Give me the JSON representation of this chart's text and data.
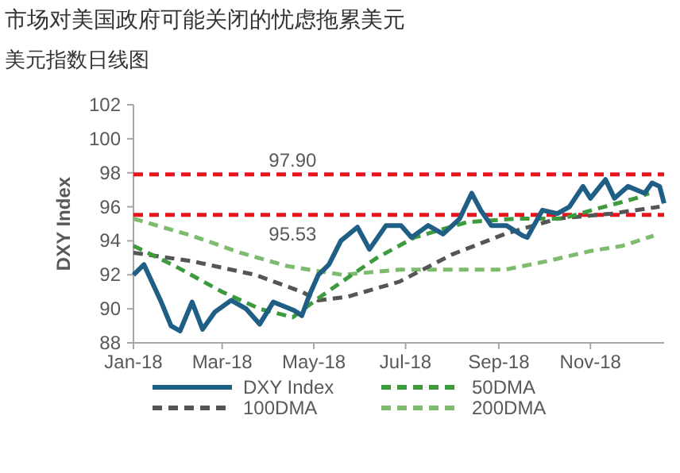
{
  "chart_data": {
    "type": "line",
    "title": "市场对美国政府可能关闭的忧虑拖累美元",
    "subtitle": "美元指数日线图",
    "ylabel": "DXY Index",
    "legend": "bottom",
    "xlim": [
      "2018-01-01",
      "2018-12-20"
    ],
    "xticks": [
      {
        "value": "2018-01-01",
        "label": "Jan-18"
      },
      {
        "value": "2018-03-01",
        "label": "Mar-18"
      },
      {
        "value": "2018-05-01",
        "label": "May-18"
      },
      {
        "value": "2018-07-01",
        "label": "Jul-18"
      },
      {
        "value": "2018-09-01",
        "label": "Sep-18"
      },
      {
        "value": "2018-11-01",
        "label": "Nov-18"
      }
    ],
    "ylim": [
      88,
      102
    ],
    "yticks": [
      88,
      90,
      92,
      94,
      96,
      98,
      100,
      102
    ],
    "series": [
      {
        "name": "DXY Index",
        "color": "#1f5f86",
        "line_style": "solid",
        "x": [
          "2018-01-01",
          "2018-01-08",
          "2018-01-19",
          "2018-01-26",
          "2018-02-01",
          "2018-02-09",
          "2018-02-16",
          "2018-02-24",
          "2018-03-07",
          "2018-03-17",
          "2018-03-26",
          "2018-04-04",
          "2018-04-18",
          "2018-04-23",
          "2018-04-28",
          "2018-05-04",
          "2018-05-11",
          "2018-05-19",
          "2018-05-30",
          "2018-06-07",
          "2018-06-18",
          "2018-06-28",
          "2018-07-05",
          "2018-07-16",
          "2018-07-26",
          "2018-08-06",
          "2018-08-14",
          "2018-08-20",
          "2018-08-27",
          "2018-09-06",
          "2018-09-17",
          "2018-09-20",
          "2018-09-30",
          "2018-10-10",
          "2018-10-18",
          "2018-10-27",
          "2018-11-01",
          "2018-11-11",
          "2018-11-17",
          "2018-11-26",
          "2018-12-07",
          "2018-12-12",
          "2018-12-17",
          "2018-12-20"
        ],
        "values": [
          92.0,
          92.6,
          90.5,
          89.0,
          88.7,
          90.4,
          88.8,
          89.8,
          90.5,
          90.0,
          89.1,
          90.4,
          89.9,
          89.6,
          90.8,
          92.0,
          92.6,
          94.0,
          94.8,
          93.5,
          94.9,
          94.9,
          94.2,
          94.9,
          94.4,
          95.3,
          96.8,
          95.8,
          94.9,
          94.9,
          94.3,
          94.2,
          95.8,
          95.6,
          96.0,
          97.2,
          96.5,
          97.6,
          96.5,
          97.2,
          96.8,
          97.4,
          97.2,
          96.2
        ]
      },
      {
        "name": "50DMA",
        "color": "#3d9a3d",
        "line_style": "dashed",
        "x": [
          "2018-01-01",
          "2018-01-29",
          "2018-03-01",
          "2018-03-26",
          "2018-04-17",
          "2018-05-02",
          "2018-05-23",
          "2018-06-12",
          "2018-07-07",
          "2018-08-11",
          "2018-09-12",
          "2018-10-13",
          "2018-11-06",
          "2018-12-01",
          "2018-12-10"
        ],
        "values": [
          93.7,
          92.5,
          91.0,
          90.0,
          89.5,
          90.5,
          91.8,
          93.0,
          94.2,
          95.1,
          95.3,
          95.3,
          95.9,
          96.5,
          96.8
        ]
      },
      {
        "name": "100DMA",
        "color": "#555555",
        "line_style": "dashed",
        "x": [
          "2018-01-01",
          "2018-02-09",
          "2018-03-23",
          "2018-04-23",
          "2018-05-04",
          "2018-05-23",
          "2018-06-27",
          "2018-08-01",
          "2018-09-05",
          "2018-10-10",
          "2018-11-15",
          "2018-12-17"
        ],
        "values": [
          93.3,
          92.8,
          92.0,
          91.0,
          90.5,
          90.7,
          91.6,
          93.2,
          94.4,
          95.3,
          95.6,
          96.0
        ]
      },
      {
        "name": "200DMA",
        "color": "#7dbb6f",
        "line_style": "dashed",
        "x": [
          "2018-01-01",
          "2018-02-09",
          "2018-03-13",
          "2018-04-14",
          "2018-05-20",
          "2018-06-27",
          "2018-08-01",
          "2018-09-05",
          "2018-10-03",
          "2018-11-01",
          "2018-11-22",
          "2018-12-13"
        ],
        "values": [
          95.3,
          94.3,
          93.3,
          92.5,
          92.0,
          92.3,
          92.3,
          92.3,
          92.8,
          93.4,
          93.7,
          94.3
        ]
      }
    ],
    "ref_lines": [
      {
        "axis": "y",
        "value": 97.9,
        "label": "97.90",
        "color": "#e8141b",
        "line_style": "dashed"
      },
      {
        "axis": "y",
        "value": 95.53,
        "label": "95.53",
        "color": "#e8141b",
        "line_style": "dashed"
      }
    ]
  }
}
